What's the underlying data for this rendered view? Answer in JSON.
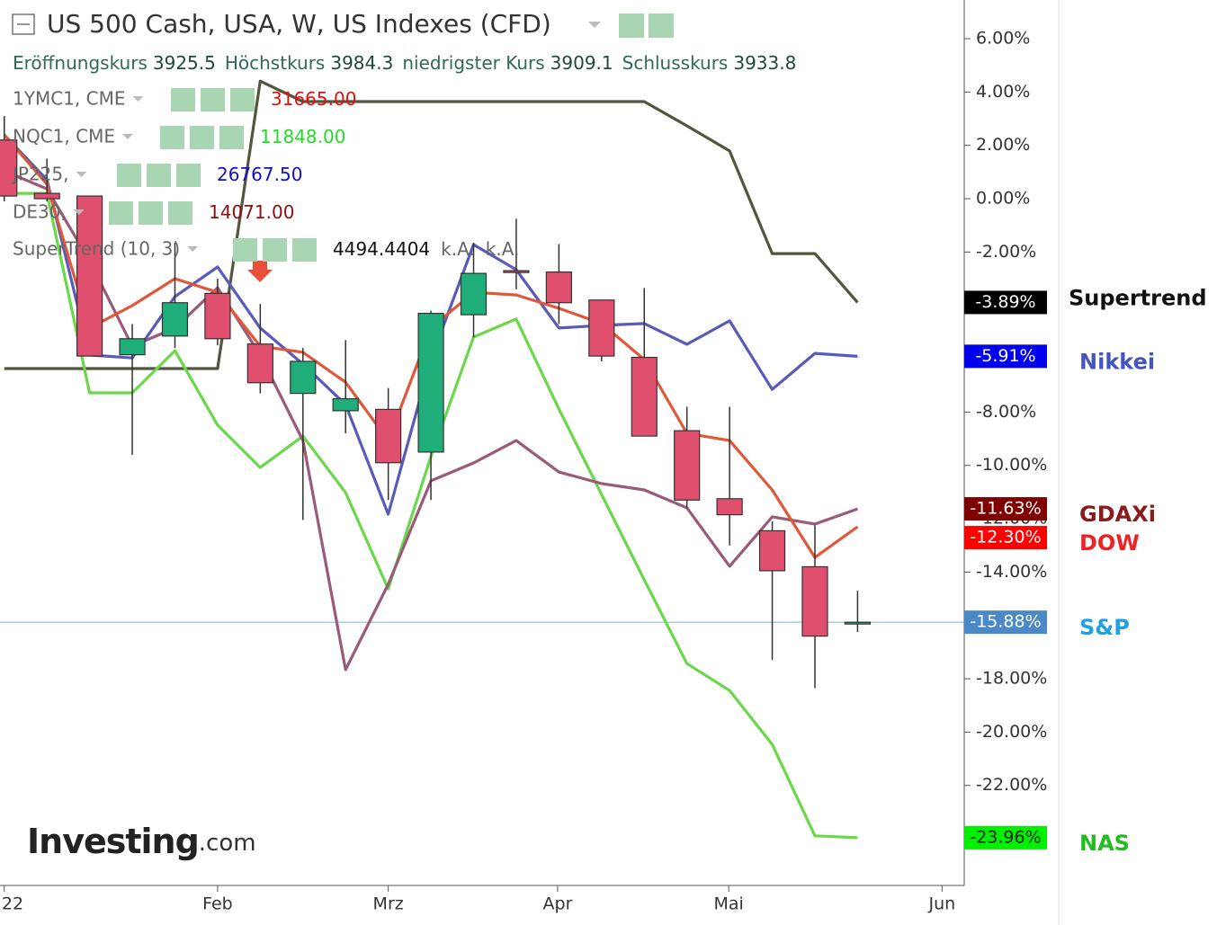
{
  "header": {
    "title": "US 500 Cash, USA, W, US Indexes (CFD)",
    "ohlc": [
      {
        "label": "Eröffnungskurs",
        "value": "3925.5"
      },
      {
        "label": "Höchstkurs",
        "value": "3984.3"
      },
      {
        "label": "niedrigster Kurs",
        "value": "3909.1"
      },
      {
        "label": "Schlusskurs",
        "value": "3933.8"
      }
    ],
    "indicators": [
      {
        "name": "1YMC1, CME",
        "value": "31665.00",
        "color": "#e01010"
      },
      {
        "name": "NQC1, CME",
        "value": "11848.00",
        "color": "#22dd22"
      },
      {
        "name": "JP225,",
        "value": "26767.50",
        "color": "#1010cc"
      },
      {
        "name": "DE30,",
        "value": "14071.00",
        "color": "#8b1010"
      },
      {
        "name": "SuperTrend (10, 3)",
        "value": "4494.4404",
        "color": "#111111",
        "extra": [
          "k.A.",
          "k.A."
        ]
      }
    ],
    "logo": [
      "Investing",
      ".com"
    ]
  },
  "chart_data": {
    "type": "candlestick",
    "x": [
      0,
      1,
      2,
      3,
      4,
      5,
      6,
      7,
      8,
      9,
      10,
      11,
      12,
      13,
      14,
      15,
      16,
      17,
      18,
      19,
      20
    ],
    "xlim": [
      -0.1,
      22.5
    ],
    "xticks": [
      {
        "value": 0,
        "label": "22"
      },
      {
        "value": 5,
        "label": "Feb"
      },
      {
        "value": 9,
        "label": "Mrz"
      },
      {
        "value": 12.97,
        "label": "Apr"
      },
      {
        "value": 16.98,
        "label": "Mai"
      },
      {
        "value": 21.98,
        "label": "Jun"
      }
    ],
    "ylim": [
      -25.75,
      7.45
    ],
    "yticks": [
      {
        "value": 6,
        "label": "6.00%"
      },
      {
        "value": 4,
        "label": "4.00%"
      },
      {
        "value": 2,
        "label": "2.00%"
      },
      {
        "value": 0,
        "label": "0.00%"
      },
      {
        "value": -2,
        "label": "-2.00%"
      },
      {
        "value": -4,
        "label": "-4.00%"
      },
      {
        "value": -6,
        "label": "-6.00%"
      },
      {
        "value": -8,
        "label": "-8.00%"
      },
      {
        "value": -10,
        "label": "-10.00%"
      },
      {
        "value": -12,
        "label": "-12.00%"
      },
      {
        "value": -14,
        "label": "-14.00%"
      },
      {
        "value": -16,
        "label": "-16.00%"
      },
      {
        "value": -18,
        "label": "-18.00%"
      },
      {
        "value": -20,
        "label": "-20.00%"
      },
      {
        "value": -22,
        "label": "-22.00%"
      }
    ],
    "candles": {
      "name": "S&P",
      "color_up": "#1fae7a",
      "color_down": "#e0506e",
      "label_color": "#20a0e0",
      "badge_color": "#4a88c8",
      "end_label": "-15.88%",
      "open": [
        2.2,
        0.2,
        0.1,
        -5.85,
        -5.15,
        -3.55,
        -5.45,
        -7.3,
        -7.95,
        -7.9,
        -9.5,
        -4.35,
        -2.7,
        -2.75,
        -3.8,
        -5.95,
        -8.7,
        -11.25,
        -12.45,
        -13.8,
        -15.9
      ],
      "high": [
        3.1,
        1.5,
        0.1,
        -4.7,
        -1.65,
        -3.0,
        -3.95,
        -5.6,
        -5.3,
        -7.1,
        -4.2,
        -1.65,
        -0.75,
        -1.7,
        -3.8,
        -3.35,
        -7.8,
        -7.8,
        -12.1,
        -12.25,
        -14.7
      ],
      "low": [
        -0.1,
        -0.1,
        -5.9,
        -9.6,
        -5.6,
        -5.5,
        -7.3,
        -12.05,
        -8.8,
        -11.3,
        -11.3,
        -5.2,
        -3.4,
        -4.7,
        -6.1,
        -8.9,
        -11.6,
        -13.0,
        -17.3,
        -18.35,
        -16.25
      ],
      "close": [
        0.1,
        0.0,
        -5.9,
        -5.25,
        -3.9,
        -5.25,
        -6.9,
        -6.1,
        -7.5,
        -9.9,
        -4.3,
        -2.8,
        -2.75,
        -3.9,
        -5.9,
        -8.9,
        -11.3,
        -11.85,
        -13.95,
        -16.4,
        -15.88
      ]
    },
    "series": [
      {
        "name": "Supertrend",
        "color": "#55553f",
        "label_color": "#111111",
        "badge_color": "#000000",
        "end_label": "-3.89%",
        "values": [
          -6.37,
          -6.37,
          -6.37,
          -6.37,
          -6.37,
          -6.37,
          4.41,
          3.64,
          3.64,
          3.64,
          3.64,
          3.64,
          3.64,
          3.64,
          3.64,
          3.64,
          2.73,
          1.79,
          -2.06,
          -2.06,
          -3.89
        ]
      },
      {
        "name": "NAS",
        "color": "#6ad84a",
        "label_color": "#22bb22",
        "badge_color": "#00f000",
        "end_label": "-23.96%",
        "values": [
          0.2,
          0.2,
          -7.28,
          -7.28,
          -5.7,
          -8.49,
          -10.08,
          -8.9,
          -11.02,
          -14.63,
          -9.67,
          -5.19,
          -4.51,
          -7.89,
          -11.09,
          -14.29,
          -17.43,
          -18.44,
          -20.46,
          -23.89,
          -23.96
        ]
      },
      {
        "name": "GDAXi",
        "color": "#9a5a7a",
        "label_color": "#8b1a1a",
        "badge_color": "#800000",
        "end_label": "-11.63%",
        "values": [
          1.04,
          0.37,
          -2.33,
          -5.53,
          -4.85,
          -3.34,
          -5.86,
          -9.07,
          -17.66,
          -14.46,
          -10.58,
          -9.91,
          -9.07,
          -10.25,
          -10.68,
          -10.92,
          -11.59,
          -13.78,
          -11.93,
          -12.2,
          -11.63
        ]
      },
      {
        "name": "Nikkei",
        "color": "#5a5ab8",
        "label_color": "#4455bb",
        "badge_color": "#0000ee",
        "end_label": "-5.91%",
        "values": [
          2.39,
          0.71,
          -5.86,
          -5.97,
          -3.67,
          -2.56,
          -4.85,
          -6.2,
          -7.72,
          -11.83,
          -6.03,
          -1.72,
          -2.66,
          -4.85,
          -4.75,
          -4.68,
          -5.46,
          -4.58,
          -7.15,
          -5.8,
          -5.91
        ]
      },
      {
        "name": "DOW",
        "color": "#e0583a",
        "label_color": "#ee2222",
        "badge_color": "#ff0000",
        "end_label": "-12.30%",
        "values": [
          2.39,
          0.54,
          -4.85,
          -4.01,
          -3.0,
          -3.51,
          -5.53,
          -5.76,
          -6.88,
          -9.07,
          -4.85,
          -3.51,
          -3.61,
          -4.11,
          -4.68,
          -6.03,
          -8.8,
          -9.07,
          -10.92,
          -13.45,
          -12.3
        ]
      }
    ]
  }
}
